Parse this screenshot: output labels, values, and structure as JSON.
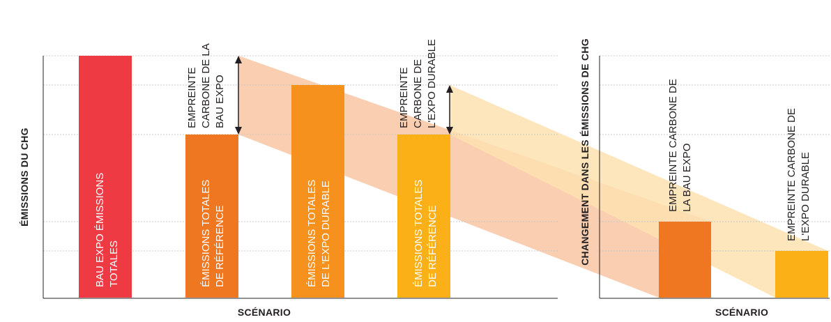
{
  "colors": {
    "red": "#ee3a43",
    "orange": "#f07722",
    "mid_orange": "#f6911e",
    "yellow": "#fbb017",
    "band_orange": "#f9c9a8",
    "band_yellow": "#fde0b0",
    "axis": "#231f20",
    "grid": "#c8c8c8"
  },
  "left_panel": {
    "y_title": "ÉMISSIONS DU CHG",
    "x_title": "SCÉNARIO",
    "bars": [
      {
        "lines": [
          "BAU EXPO ÉMISSIONS",
          "TOTALES"
        ]
      },
      {
        "lines": [
          "ÉMISSIONS TOTALES",
          "DE RÉFÉRENCE"
        ]
      },
      {
        "lines": [
          "ÉMISSIONS TOTALES",
          "DE L'EXPO DURABLE"
        ]
      },
      {
        "lines": [
          "ÉMISSIONS TOTALES",
          "DE RÉFÉRENCE"
        ]
      }
    ],
    "annotations": [
      {
        "lines": [
          "EMPREINTE",
          "CARBONE DE LA",
          "BAU EXPO"
        ]
      },
      {
        "lines": [
          "EMPREINTE",
          "CARBONE DE",
          "L'EXPO DURABLE"
        ]
      }
    ]
  },
  "right_panel": {
    "y_title": "CHANGEMENT DANS LES ÉMISSIONS DE CHG",
    "x_title": "SCÉNARIO",
    "bars": [
      {
        "lines": [
          "EMPREINTE CARBONE DE",
          "LA BAU EXPO"
        ]
      },
      {
        "lines": [
          "EMPREINTE CARBONE DE",
          "L'EXPO DURABLE"
        ]
      }
    ]
  }
}
